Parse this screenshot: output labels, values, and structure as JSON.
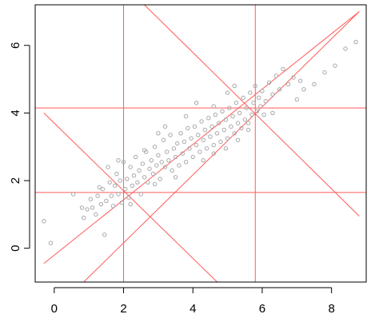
{
  "chart_data": {
    "type": "scatter",
    "title": "",
    "xlabel": "",
    "ylabel": "",
    "xlim": [
      -0.55,
      9.0
    ],
    "ylim": [
      -1.0,
      7.2
    ],
    "grid": false,
    "x_ticks": [
      0,
      2,
      4,
      6,
      8
    ],
    "y_ticks": [
      0,
      2,
      4,
      6
    ],
    "x_tick_labels": [
      "0",
      "2",
      "4",
      "6",
      "8"
    ],
    "y_tick_labels": [
      "0",
      "2",
      "4",
      "6"
    ],
    "colors": {
      "points": "#a8a8a8",
      "lines": "#ff5a5a",
      "axes": "#000000"
    },
    "point_style": "open-circle",
    "series": [
      {
        "values": [
          [
            -0.3,
            0.8
          ],
          [
            -0.1,
            0.15
          ],
          [
            0.55,
            1.6
          ],
          [
            0.8,
            1.2
          ],
          [
            0.85,
            0.9
          ],
          [
            0.95,
            1.15
          ],
          [
            1.05,
            1.45
          ],
          [
            1.1,
            1.2
          ],
          [
            1.2,
            1.0
          ],
          [
            1.25,
            1.55
          ],
          [
            1.3,
            1.8
          ],
          [
            1.35,
            1.3
          ],
          [
            1.4,
            1.75
          ],
          [
            1.45,
            0.4
          ],
          [
            1.5,
            1.4
          ],
          [
            1.55,
            2.4
          ],
          [
            1.6,
            1.95
          ],
          [
            1.65,
            1.55
          ],
          [
            1.7,
            1.25
          ],
          [
            1.75,
            1.85
          ],
          [
            1.8,
            2.2
          ],
          [
            1.85,
            1.6
          ],
          [
            1.9,
            2.0
          ],
          [
            1.95,
            1.35
          ],
          [
            2.0,
            2.55
          ],
          [
            2.05,
            1.75
          ],
          [
            2.1,
            2.05
          ],
          [
            2.15,
            1.5
          ],
          [
            2.2,
            2.4
          ],
          [
            2.25,
            1.85
          ],
          [
            2.3,
            2.15
          ],
          [
            2.35,
            2.7
          ],
          [
            2.4,
            1.95
          ],
          [
            2.45,
            2.3
          ],
          [
            2.5,
            1.6
          ],
          [
            2.55,
            2.5
          ],
          [
            2.6,
            2.1
          ],
          [
            2.65,
            2.85
          ],
          [
            2.7,
            1.95
          ],
          [
            2.75,
            2.35
          ],
          [
            2.8,
            2.6
          ],
          [
            2.85,
            2.2
          ],
          [
            2.9,
            3.0
          ],
          [
            2.95,
            2.45
          ],
          [
            3.0,
            2.75
          ],
          [
            3.05,
            2.05
          ],
          [
            3.1,
            2.55
          ],
          [
            3.15,
            3.2
          ],
          [
            3.2,
            2.4
          ],
          [
            3.25,
            2.85
          ],
          [
            3.3,
            2.6
          ],
          [
            3.35,
            3.35
          ],
          [
            3.4,
            2.3
          ],
          [
            3.45,
            2.95
          ],
          [
            3.5,
            2.7
          ],
          [
            3.55,
            3.1
          ],
          [
            3.6,
            2.45
          ],
          [
            3.65,
            3.4
          ],
          [
            3.7,
            2.8
          ],
          [
            3.75,
            3.15
          ],
          [
            3.8,
            2.55
          ],
          [
            3.85,
            3.55
          ],
          [
            3.9,
            2.95
          ],
          [
            3.95,
            3.25
          ],
          [
            4.0,
            2.7
          ],
          [
            4.05,
            3.6
          ],
          [
            4.1,
            3.05
          ],
          [
            4.15,
            3.35
          ],
          [
            4.2,
            2.85
          ],
          [
            4.25,
            3.75
          ],
          [
            4.3,
            3.2
          ],
          [
            4.35,
            3.5
          ],
          [
            4.4,
            2.95
          ],
          [
            4.45,
            3.85
          ],
          [
            4.5,
            3.3
          ],
          [
            4.55,
            3.6
          ],
          [
            4.6,
            3.05
          ],
          [
            4.65,
            3.95
          ],
          [
            4.7,
            3.4
          ],
          [
            4.75,
            3.7
          ],
          [
            4.8,
            3.15
          ],
          [
            4.85,
            4.05
          ],
          [
            4.9,
            3.5
          ],
          [
            4.95,
            3.8
          ],
          [
            5.0,
            3.25
          ],
          [
            5.05,
            4.15
          ],
          [
            5.1,
            3.6
          ],
          [
            5.15,
            3.9
          ],
          [
            5.2,
            3.4
          ],
          [
            5.25,
            4.3
          ],
          [
            5.3,
            3.7
          ],
          [
            5.35,
            4.0
          ],
          [
            5.4,
            3.55
          ],
          [
            5.45,
            4.45
          ],
          [
            5.5,
            3.8
          ],
          [
            5.55,
            4.15
          ],
          [
            5.6,
            3.7
          ],
          [
            5.65,
            4.6
          ],
          [
            5.7,
            3.95
          ],
          [
            5.75,
            4.3
          ],
          [
            5.8,
            4.8
          ],
          [
            5.85,
            4.05
          ],
          [
            5.9,
            4.45
          ],
          [
            5.95,
            4.2
          ],
          [
            6.0,
            4.65
          ],
          [
            6.1,
            4.35
          ],
          [
            6.2,
            4.9
          ],
          [
            6.3,
            4.55
          ],
          [
            6.4,
            5.1
          ],
          [
            6.5,
            4.7
          ],
          [
            6.6,
            5.3
          ],
          [
            6.75,
            4.85
          ],
          [
            6.9,
            5.05
          ],
          [
            7.0,
            4.4
          ],
          [
            7.1,
            4.95
          ],
          [
            7.2,
            4.7
          ],
          [
            7.5,
            4.85
          ],
          [
            7.8,
            5.2
          ],
          [
            8.1,
            5.4
          ],
          [
            8.4,
            5.9
          ],
          [
            8.7,
            6.1
          ],
          [
            4.1,
            4.3
          ],
          [
            4.6,
            4.2
          ],
          [
            5.2,
            4.8
          ],
          [
            3.2,
            3.6
          ],
          [
            2.6,
            2.9
          ],
          [
            3.5,
            2.1
          ],
          [
            4.3,
            2.6
          ],
          [
            2.9,
            1.9
          ],
          [
            3.8,
            3.9
          ],
          [
            4.95,
            2.95
          ],
          [
            1.85,
            2.6
          ],
          [
            5.6,
            3.5
          ],
          [
            6.3,
            4.0
          ],
          [
            5.0,
            4.6
          ],
          [
            3.0,
            3.4
          ],
          [
            2.2,
            1.3
          ],
          [
            4.6,
            2.8
          ],
          [
            5.3,
            3.2
          ],
          [
            6.05,
            3.95
          ]
        ]
      }
    ],
    "reference_lines": {
      "vertical_x": [
        2.0,
        5.8
      ],
      "horizontal_y": [
        1.65,
        4.15
      ],
      "slope_one_lines": [
        {
          "from": [
            -0.3,
            -0.45
          ],
          "to": [
            8.8,
            7.0
          ]
        },
        {
          "from": [
            0.85,
            -1.0
          ],
          "to": [
            8.8,
            7.0
          ]
        }
      ],
      "slope_minus_one_lines": [
        {
          "from": [
            -0.3,
            4.0
          ],
          "to": [
            4.7,
            -1.0
          ]
        },
        {
          "from": [
            2.6,
            7.2
          ],
          "to": [
            8.8,
            0.95
          ]
        }
      ]
    }
  }
}
